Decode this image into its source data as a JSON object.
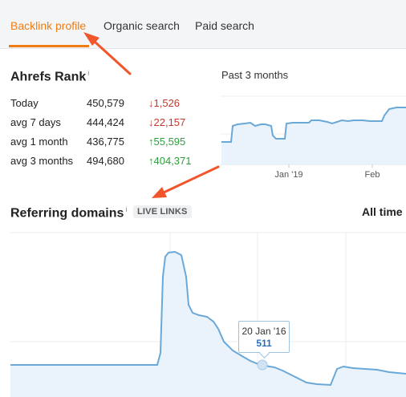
{
  "tabs": [
    {
      "label": "Backlink profile",
      "active": true
    },
    {
      "label": "Organic search",
      "active": false
    },
    {
      "label": "Paid search",
      "active": false
    }
  ],
  "ahrefs_rank": {
    "title": "Ahrefs Rank",
    "info": "i",
    "rows": [
      {
        "label": "Today",
        "value": "450,579",
        "change": "1,526",
        "direction": "down"
      },
      {
        "label": "avg 7 days",
        "value": "444,424",
        "change": "22,157",
        "direction": "down"
      },
      {
        "label": "avg 1 month",
        "value": "436,775",
        "change": "55,595",
        "direction": "up"
      },
      {
        "label": "avg 3 months",
        "value": "494,680",
        "change": "404,371",
        "direction": "up"
      }
    ]
  },
  "rank_chart": {
    "period_label": "Past 3 months",
    "x_ticks": [
      "Jan '19",
      "Feb"
    ]
  },
  "referring_domains": {
    "title": "Referring domains",
    "info": "i",
    "live_links_label": "LIVE LINKS",
    "range_label": "All time",
    "tooltip": {
      "date": "20 Jan '16",
      "value": "511"
    }
  },
  "colors": {
    "accent": "#f07c13",
    "line": "#6aa8d8",
    "fill": "#eaf3fb",
    "down": "#c0392b",
    "up": "#2e9e3e",
    "arrow": "#f2552a"
  },
  "icons": {
    "annotation_arrow": "arrow-annotation-icon",
    "down_arrow": "arrow-down-icon",
    "up_arrow": "arrow-up-icon"
  }
}
